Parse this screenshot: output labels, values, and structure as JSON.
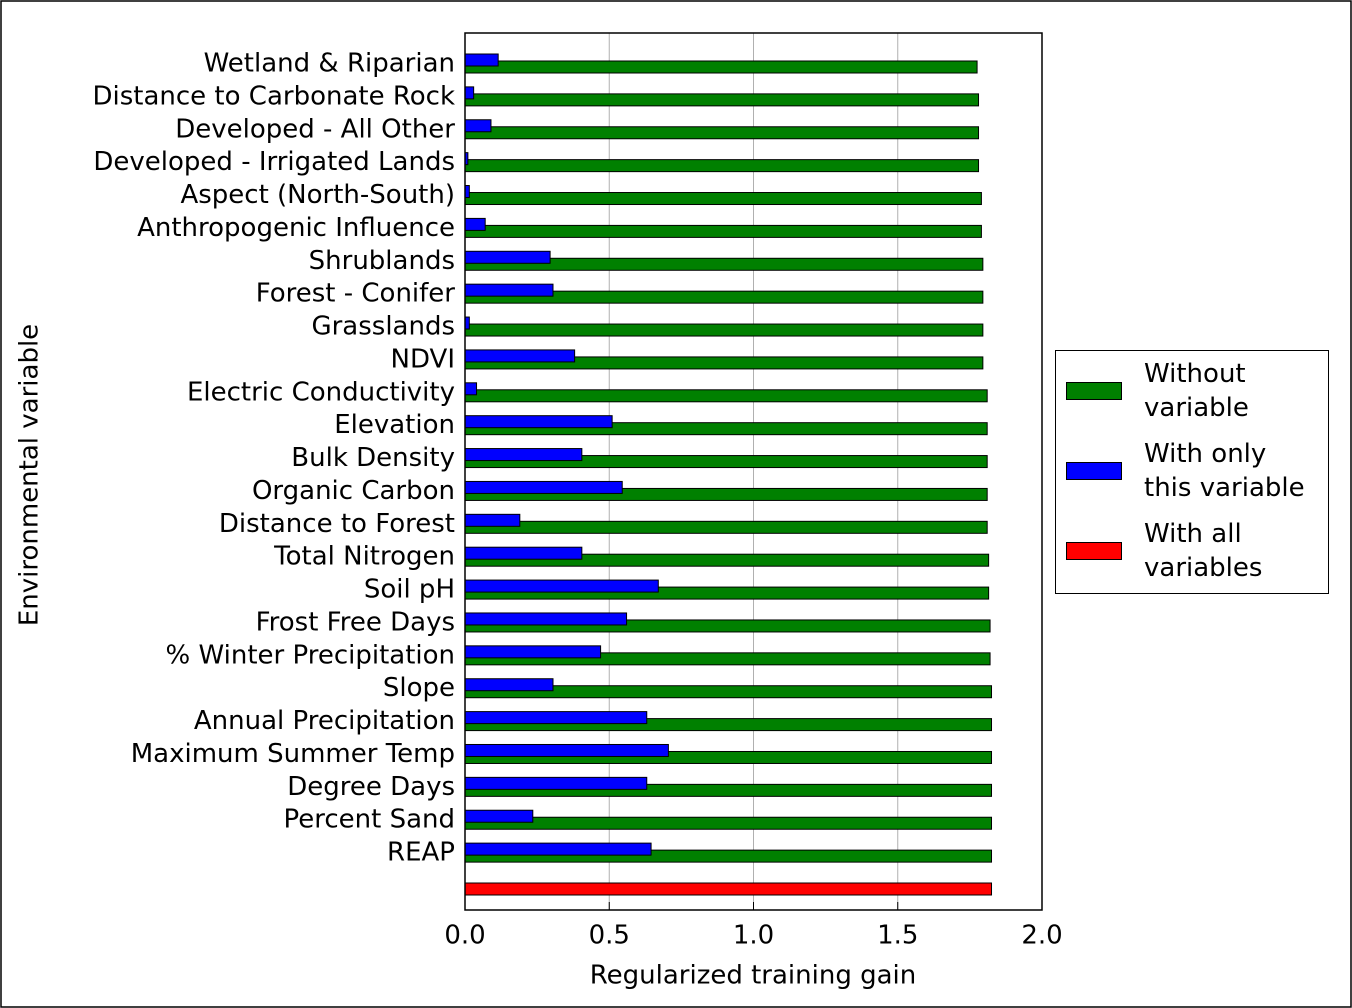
{
  "chart_data": {
    "type": "bar",
    "orientation": "horizontal",
    "xlabel": "Regularized training gain",
    "ylabel": "Environmental variable",
    "categories": [
      "Wetland & Riparian",
      "Distance to Carbonate Rock",
      "Developed - All Other",
      "Developed - Irrigated Lands",
      "Aspect (North-South)",
      "Anthropogenic Influence",
      "Shrublands",
      "Forest - Conifer",
      "Grasslands",
      "NDVI",
      "Electric Conductivity",
      "Elevation",
      "Bulk Density",
      "Organic Carbon",
      "Distance to Forest",
      "Total Nitrogen",
      "Soil pH",
      "Frost Free Days",
      "% Winter Precipitation",
      "Slope",
      "Annual Precipitation",
      "Maximum Summer Temp",
      "Degree Days",
      "Percent Sand",
      "REAP",
      null
    ],
    "series": [
      {
        "name": "Without\nvariable",
        "color": "#008000",
        "values": [
          1.775,
          1.78,
          1.78,
          1.78,
          1.79,
          1.79,
          1.795,
          1.795,
          1.795,
          1.795,
          1.81,
          1.81,
          1.81,
          1.81,
          1.81,
          1.815,
          1.815,
          1.82,
          1.82,
          1.825,
          1.825,
          1.825,
          1.825,
          1.825,
          1.825,
          null
        ]
      },
      {
        "name": "With only\nthis variable",
        "color": "#0000ff",
        "values": [
          0.115,
          0.03,
          0.09,
          0.01,
          0.015,
          0.07,
          0.295,
          0.305,
          0.015,
          0.38,
          0.04,
          0.51,
          0.405,
          0.545,
          0.19,
          0.405,
          0.67,
          0.56,
          0.47,
          0.305,
          0.63,
          0.705,
          0.63,
          0.235,
          0.645,
          null
        ]
      },
      {
        "name": "With all\nvariables",
        "color": "#ff0000",
        "values": [
          null,
          null,
          null,
          null,
          null,
          null,
          null,
          null,
          null,
          null,
          null,
          null,
          null,
          null,
          null,
          null,
          null,
          null,
          null,
          null,
          null,
          null,
          null,
          null,
          null,
          1.825
        ]
      }
    ],
    "xlim": [
      0,
      2
    ],
    "xticks": [
      {
        "value": 0,
        "label": "0.0"
      },
      {
        "value": 0.5,
        "label": "0.5"
      },
      {
        "value": 1,
        "label": "1.0"
      },
      {
        "value": 1.5,
        "label": "1.5"
      },
      {
        "value": 2,
        "label": "2.0"
      }
    ],
    "grid": true,
    "legend": "right"
  }
}
